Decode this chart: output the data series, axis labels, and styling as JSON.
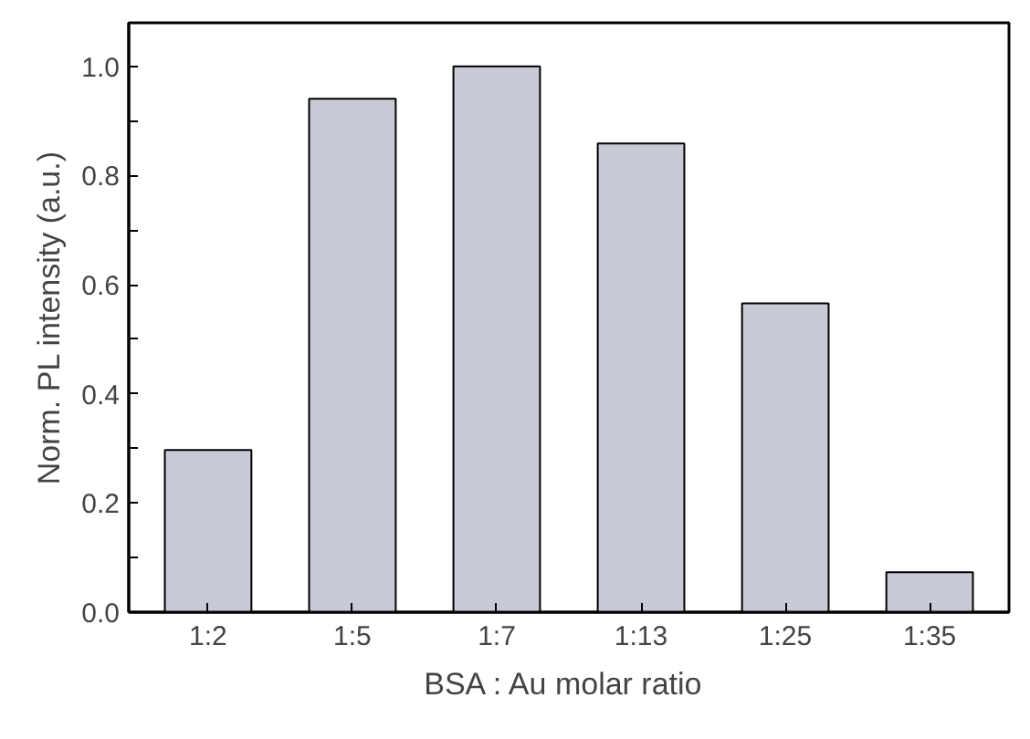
{
  "chart_data": {
    "type": "bar",
    "xlabel": "BSA : Au  molar ratio",
    "ylabel": "Norm. PL intensity (a.u.)",
    "categories": [
      "1:2",
      "1:5",
      "1:7",
      "1:13",
      "1:25",
      "1:35"
    ],
    "values": [
      0.297,
      0.941,
      1.0,
      0.859,
      0.566,
      0.073
    ],
    "color": "#c8cad5",
    "ylim": [
      0,
      1.08
    ],
    "yticks": [
      {
        "value": 0.0,
        "label": "0.0"
      },
      {
        "value": 0.1,
        "label": null
      },
      {
        "value": 0.2,
        "label": "0.2"
      },
      {
        "value": 0.3,
        "label": null
      },
      {
        "value": 0.4,
        "label": "0.4"
      },
      {
        "value": 0.5,
        "label": null
      },
      {
        "value": 0.6,
        "label": "0.6"
      },
      {
        "value": 0.7,
        "label": null
      },
      {
        "value": 0.8,
        "label": "0.8"
      },
      {
        "value": 0.9,
        "label": null
      },
      {
        "value": 1.0,
        "label": "1.0"
      }
    ],
    "grid": false
  }
}
